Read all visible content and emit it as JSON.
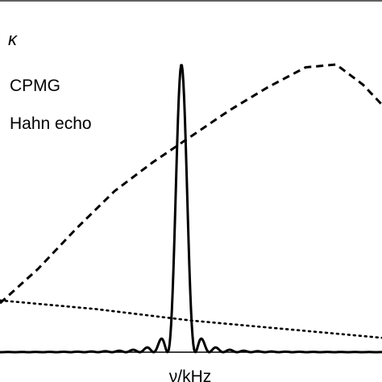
{
  "chart_data": {
    "type": "line",
    "ylabel": "κ",
    "xlabel": "ν/kHz",
    "xlim": [
      0,
      1
    ],
    "ylim": [
      0,
      1
    ],
    "grid": false,
    "legend": {
      "placement": "top-left",
      "entries": [
        "CPMG",
        "Hahn echo"
      ]
    },
    "series": [
      {
        "name": "dashed",
        "style": "dashed",
        "x": [
          0.0,
          0.1,
          0.2,
          0.3,
          0.4,
          0.5,
          0.6,
          0.7,
          0.8,
          0.88,
          0.95,
          1.0
        ],
        "y": [
          0.17,
          0.29,
          0.43,
          0.56,
          0.66,
          0.75,
          0.84,
          0.92,
          0.99,
          1.0,
          0.93,
          0.86
        ]
      },
      {
        "name": "dotted",
        "style": "dotted",
        "x": [
          0.0,
          0.25,
          0.5,
          0.75,
          1.0
        ],
        "y": [
          0.18,
          0.15,
          0.11,
          0.08,
          0.05
        ]
      },
      {
        "name": "solid",
        "style": "solid",
        "peak_x": 0.475,
        "peak_y": 1.0,
        "width": 0.08
      }
    ]
  }
}
